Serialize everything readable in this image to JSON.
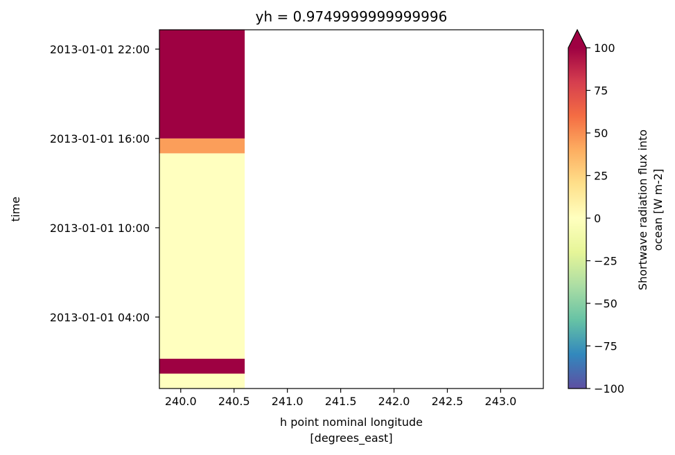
{
  "chart_data": {
    "type": "heatmap",
    "title": "yh = 0.9749999999999996",
    "xlabel_line1": "h point nominal longitude",
    "xlabel_line2": "[degrees_east]",
    "ylabel": "time",
    "xlim": [
      239.8,
      243.4
    ],
    "ylim_hours": [
      -0.8,
      23.3
    ],
    "x_ticks": [
      {
        "value": 240.0,
        "label": "240.0"
      },
      {
        "value": 240.5,
        "label": "240.5"
      },
      {
        "value": 241.0,
        "label": "241.0"
      },
      {
        "value": 241.5,
        "label": "241.5"
      },
      {
        "value": 242.0,
        "label": "242.0"
      },
      {
        "value": 242.5,
        "label": "242.5"
      },
      {
        "value": 243.0,
        "label": "243.0"
      }
    ],
    "y_ticks": [
      {
        "hours": 4,
        "label": "2013-01-01 04:00"
      },
      {
        "hours": 10,
        "label": "2013-01-01 10:00"
      },
      {
        "hours": 16,
        "label": "2013-01-01 16:00"
      },
      {
        "hours": 22,
        "label": "2013-01-01 22:00"
      }
    ],
    "cells": [
      {
        "x0": 239.8,
        "x1": 240.6,
        "t0": -0.8,
        "t1": 0.2,
        "value": 0
      },
      {
        "x0": 239.8,
        "x1": 240.6,
        "t0": 0.2,
        "t1": 1.2,
        "value": 100
      },
      {
        "x0": 239.8,
        "x1": 240.6,
        "t0": 1.2,
        "t1": 15.0,
        "value": 0
      },
      {
        "x0": 239.8,
        "x1": 240.6,
        "t0": 15.0,
        "t1": 16.0,
        "value": 45
      },
      {
        "x0": 239.8,
        "x1": 240.6,
        "t0": 16.0,
        "t1": 23.3,
        "value": 100
      }
    ],
    "colorbar": {
      "label_line1": "Shortwave radiation flux into",
      "label_line2": "ocean [W m-2]",
      "vmin": -100,
      "vmax": 100,
      "extend": "max",
      "colormap": "Spectral_r",
      "ticks": [
        {
          "value": 100,
          "label": "100"
        },
        {
          "value": 75,
          "label": "75"
        },
        {
          "value": 50,
          "label": "50"
        },
        {
          "value": 25,
          "label": "25"
        },
        {
          "value": 0,
          "label": "0"
        },
        {
          "value": -25,
          "label": "−25"
        },
        {
          "value": -50,
          "label": "−50"
        },
        {
          "value": -75,
          "label": "−75"
        },
        {
          "value": -100,
          "label": "−100"
        }
      ]
    }
  }
}
